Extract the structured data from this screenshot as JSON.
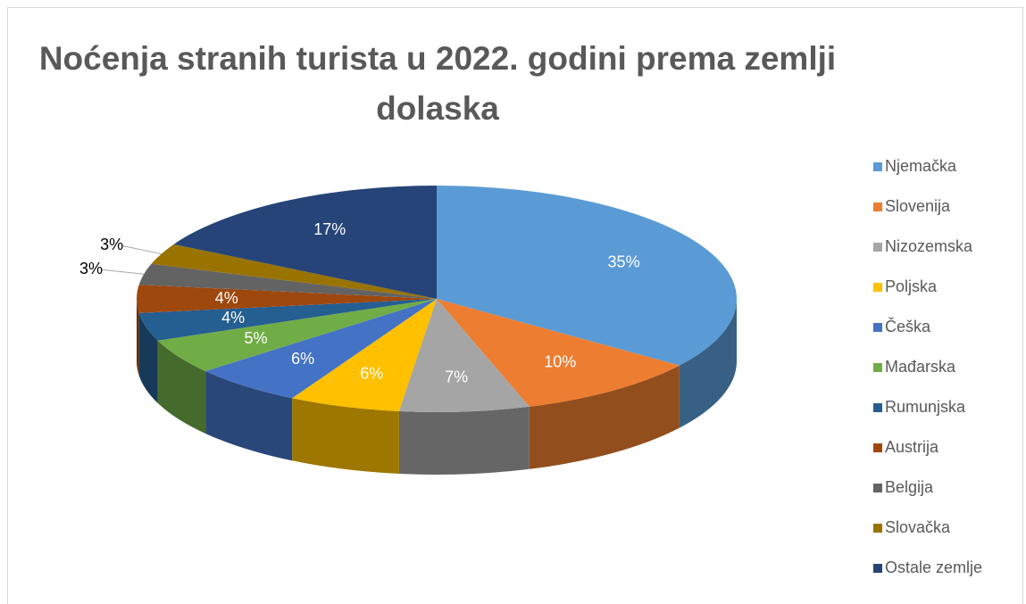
{
  "chart_data": {
    "type": "pie3d",
    "title": "Noćenja stranih turista u 2022. godini prema zemlji dolaska",
    "categories": [
      "Njemačka",
      "Slovenija",
      "Nizozemska",
      "Poljska",
      "Češka",
      "Mađarska",
      "Rumunjska",
      "Austrija",
      "Belgija",
      "Slovačka",
      "Ostale zemlje"
    ],
    "values": [
      35,
      10,
      7,
      6,
      6,
      5,
      4,
      4,
      3,
      3,
      17
    ],
    "value_labels": [
      "35%",
      "10%",
      "7%",
      "6%",
      "6%",
      "5%",
      "4%",
      "4%",
      "3%",
      "3%",
      "17%"
    ],
    "colors": [
      "#5b9bd5",
      "#ed7d31",
      "#a5a5a5",
      "#ffc000",
      "#4472c4",
      "#70ad47",
      "#255e91",
      "#9e480e",
      "#636363",
      "#997300",
      "#264478"
    ],
    "legend": "right"
  }
}
